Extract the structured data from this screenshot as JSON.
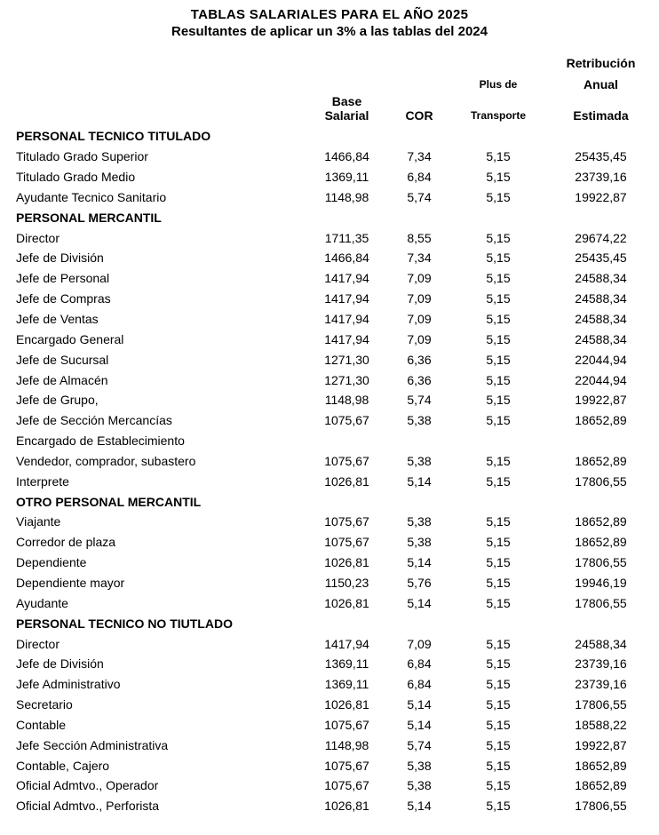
{
  "document": {
    "title": "TABLAS SALARIALES PARA EL AÑO 2025",
    "subtitle": "Resultantes de aplicar un 3% a las tablas del 2024"
  },
  "colors": {
    "text": "#000000",
    "background": "#ffffff"
  },
  "table": {
    "columns": {
      "base_line1": "Base",
      "base_line2": "Salarial",
      "cor": "COR",
      "plus_line1": "Plus de",
      "plus_line2": "Transporte",
      "retribucion_line1": "Retribución",
      "retribucion_line2": "Anual",
      "retribucion_line3": "Estimada"
    },
    "rows": [
      {
        "type": "section",
        "label": "PERSONAL TECNICO TITULADO",
        "base": "",
        "cor": "",
        "plus": "",
        "anual": ""
      },
      {
        "type": "data",
        "label": "Titulado Grado Superior",
        "base": "1466,84",
        "cor": "7,34",
        "plus": "5,15",
        "anual": "25435,45"
      },
      {
        "type": "data",
        "label": "Titulado Grado Medio",
        "base": "1369,11",
        "cor": "6,84",
        "plus": "5,15",
        "anual": "23739,16"
      },
      {
        "type": "data",
        "label": "Ayudante Tecnico Sanitario",
        "base": "1148,98",
        "cor": "5,74",
        "plus": "5,15",
        "anual": "19922,87"
      },
      {
        "type": "section",
        "label": "PERSONAL MERCANTIL",
        "base": "",
        "cor": "",
        "plus": "",
        "anual": ""
      },
      {
        "type": "data",
        "label": "Director",
        "base": "1711,35",
        "cor": "8,55",
        "plus": "5,15",
        "anual": "29674,22"
      },
      {
        "type": "data",
        "label": "Jefe de División",
        "base": "1466,84",
        "cor": "7,34",
        "plus": "5,15",
        "anual": "25435,45"
      },
      {
        "type": "data",
        "label": "Jefe de Personal",
        "base": "1417,94",
        "cor": "7,09",
        "plus": "5,15",
        "anual": "24588,34"
      },
      {
        "type": "data",
        "label": "Jefe de Compras",
        "base": "1417,94",
        "cor": "7,09",
        "plus": "5,15",
        "anual": "24588,34"
      },
      {
        "type": "data",
        "label": "Jefe de Ventas",
        "base": "1417,94",
        "cor": "7,09",
        "plus": "5,15",
        "anual": "24588,34"
      },
      {
        "type": "data",
        "label": "Encargado General",
        "base": "1417,94",
        "cor": "7,09",
        "plus": "5,15",
        "anual": "24588,34"
      },
      {
        "type": "data",
        "label": "Jefe de Sucursal",
        "base": "1271,30",
        "cor": "6,36",
        "plus": "5,15",
        "anual": "22044,94"
      },
      {
        "type": "data",
        "label": "Jefe de Almacén",
        "base": "1271,30",
        "cor": "6,36",
        "plus": "5,15",
        "anual": "22044,94"
      },
      {
        "type": "data",
        "label": "Jefe de Grupo,",
        "base": "1148,98",
        "cor": "5,74",
        "plus": "5,15",
        "anual": "19922,87"
      },
      {
        "type": "data",
        "label": "Jefe de Sección Mercancías",
        "base": "1075,67",
        "cor": "5,38",
        "plus": "5,15",
        "anual": "18652,89"
      },
      {
        "type": "data",
        "label": "Encargado de Establecimiento",
        "base": "",
        "cor": "",
        "plus": "",
        "anual": ""
      },
      {
        "type": "data",
        "label": "Vendedor, comprador, subastero",
        "base": "1075,67",
        "cor": "5,38",
        "plus": "5,15",
        "anual": "18652,89"
      },
      {
        "type": "data",
        "label": "Interprete",
        "base": "1026,81",
        "cor": "5,14",
        "plus": "5,15",
        "anual": "17806,55"
      },
      {
        "type": "section",
        "label": "OTRO PERSONAL MERCANTIL",
        "base": "",
        "cor": "",
        "plus": "",
        "anual": ""
      },
      {
        "type": "data",
        "label": "Viajante",
        "base": "1075,67",
        "cor": "5,38",
        "plus": "5,15",
        "anual": "18652,89"
      },
      {
        "type": "data",
        "label": "Corredor de plaza",
        "base": "1075,67",
        "cor": "5,38",
        "plus": "5,15",
        "anual": "18652,89"
      },
      {
        "type": "data",
        "label": "Dependiente",
        "base": "1026,81",
        "cor": "5,14",
        "plus": "5,15",
        "anual": "17806,55"
      },
      {
        "type": "data",
        "label": "Dependiente mayor",
        "base": "1150,23",
        "cor": "5,76",
        "plus": "5,15",
        "anual": "19946,19"
      },
      {
        "type": "data",
        "label": "Ayudante",
        "base": "1026,81",
        "cor": "5,14",
        "plus": "5,15",
        "anual": "17806,55"
      },
      {
        "type": "section",
        "label": "PERSONAL TECNICO NO TIUTLADO",
        "base": "",
        "cor": "",
        "plus": "",
        "anual": ""
      },
      {
        "type": "data",
        "label": "Director",
        "base": "1417,94",
        "cor": "7,09",
        "plus": "5,15",
        "anual": "24588,34"
      },
      {
        "type": "data",
        "label": "Jefe de División",
        "base": "1369,11",
        "cor": "6,84",
        "plus": "5,15",
        "anual": "23739,16"
      },
      {
        "type": "data",
        "label": "Jefe Administrativo",
        "base": "1369,11",
        "cor": "6,84",
        "plus": "5,15",
        "anual": "23739,16"
      },
      {
        "type": "data",
        "label": "Secretario",
        "base": "1026,81",
        "cor": "5,14",
        "plus": "5,15",
        "anual": "17806,55"
      },
      {
        "type": "data",
        "label": "Contable",
        "base": "1075,67",
        "cor": "5,14",
        "plus": "5,15",
        "anual": "18588,22"
      },
      {
        "type": "data",
        "label": "Jefe Sección Administrativa",
        "base": "1148,98",
        "cor": "5,74",
        "plus": "5,15",
        "anual": "19922,87"
      },
      {
        "type": "data",
        "label": "Contable, Cajero",
        "base": "1075,67",
        "cor": "5,38",
        "plus": "5,15",
        "anual": "18652,89"
      },
      {
        "type": "data",
        "label": "Oficial Admtvo., Operador",
        "base": "1075,67",
        "cor": "5,38",
        "plus": "5,15",
        "anual": "18652,89"
      },
      {
        "type": "data",
        "label": "Oficial Admtvo., Perforista",
        "base": "1026,81",
        "cor": "5,14",
        "plus": "5,15",
        "anual": "17806,55"
      }
    ]
  }
}
